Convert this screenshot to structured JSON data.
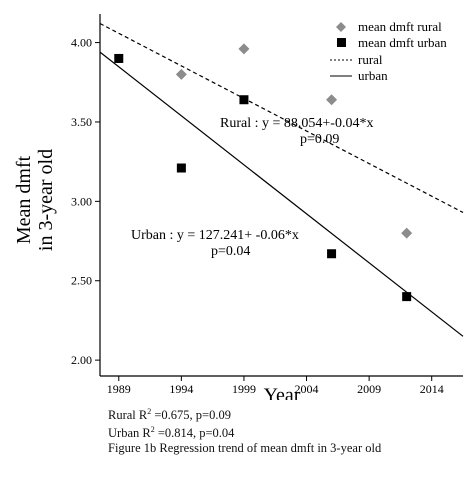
{
  "chart_data": {
    "type": "scatter",
    "ylabel_line1": "Mean dmft",
    "ylabel_line2": "in 3-year old",
    "xlabel": "Year",
    "xlim": [
      1987.5,
      2016.5
    ],
    "ylim": [
      1.9,
      4.18
    ],
    "x_ticks": [
      1989,
      1994,
      1999,
      2004,
      2009,
      2014
    ],
    "y_ticks": [
      2.0,
      2.5,
      3.0,
      3.5,
      4.0
    ],
    "y_tick_labels": [
      "2.00",
      "2.50",
      "3.00",
      "3.50",
      "4.00"
    ],
    "series": [
      {
        "name": "mean dmft rural",
        "marker": "diamond",
        "color": "#8c8c8c",
        "points": [
          [
            1994,
            3.8
          ],
          [
            1999,
            3.96
          ],
          [
            2006,
            3.64
          ],
          [
            2012,
            2.8
          ]
        ]
      },
      {
        "name": "mean dmft urban",
        "marker": "square",
        "color": "#000000",
        "points": [
          [
            1989,
            3.9
          ],
          [
            1994,
            3.21
          ],
          [
            1999,
            3.64
          ],
          [
            2006,
            2.67
          ],
          [
            2012,
            2.4
          ]
        ]
      }
    ],
    "fit_lines": [
      {
        "name": "rural",
        "style": "dashed",
        "intercept": 88.054,
        "slope": -0.04,
        "x_range": [
          1987.5,
          2016.5
        ],
        "endpoints": [
          [
            1987.5,
            4.12
          ],
          [
            2016.5,
            2.93
          ]
        ]
      },
      {
        "name": "urban",
        "style": "solid",
        "intercept": 127.241,
        "slope": -0.06,
        "x_range": [
          1987.5,
          2016.5
        ],
        "endpoints": [
          [
            1987.5,
            3.94
          ],
          [
            2016.5,
            2.15
          ]
        ]
      }
    ],
    "legend": {
      "placement": "top-right",
      "entries": [
        {
          "label": "mean dmft rural",
          "symbol": "diamond",
          "color": "#8c8c8c"
        },
        {
          "label": "mean dmft urban",
          "symbol": "square",
          "color": "#000000"
        },
        {
          "label": "rural",
          "symbol": "dashed-line",
          "color": "#000000"
        },
        {
          "label": "urban",
          "symbol": "solid-line",
          "color": "#000000"
        }
      ]
    },
    "annotations": {
      "rural_eq": "Rural : y = 88.054+-0.04*x",
      "rural_p": "p=0.09",
      "urban_eq": "Urban : y = 127.241+ -0.06*x",
      "urban_p": "p=0.04"
    }
  },
  "caption": {
    "rural_stats_prefix": "Rural R",
    "rural_stats_suffix": " =0.675, p=0.09",
    "urban_stats_prefix": "Urban R",
    "urban_stats_suffix": " =0.814, p=0.04",
    "superscript": "2",
    "figure": "Figure 1b Regression trend of mean dmft in 3-year old"
  }
}
